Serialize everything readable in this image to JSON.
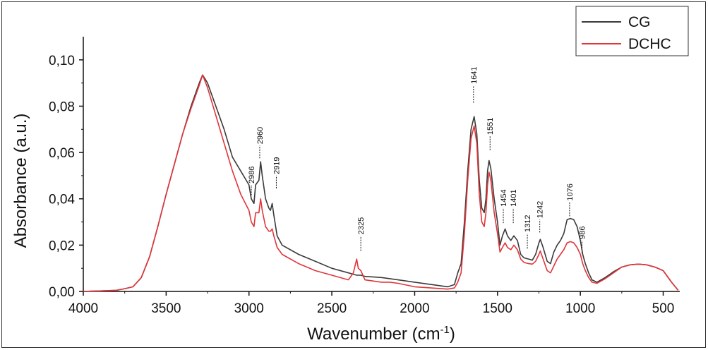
{
  "chart_data": {
    "type": "line",
    "xlabel": "Wavenumber (cm",
    "xlabel_sup": "-1",
    "xlabel_end": ")",
    "ylabel": "Absorbance (a.u.)",
    "xlim": [
      4000,
      400
    ],
    "ylim": [
      0.0,
      0.11
    ],
    "x_ticks": [
      4000,
      3500,
      3000,
      2500,
      2000,
      1500,
      1000,
      500
    ],
    "x_tick_labels": [
      "4000",
      "3500",
      "3000",
      "2500",
      "2000",
      "1500",
      "1000",
      "500"
    ],
    "y_ticks": [
      0.0,
      0.02,
      0.04,
      0.06,
      0.08,
      0.1
    ],
    "y_tick_labels": [
      "0,00",
      "0,02",
      "0,04",
      "0,06",
      "0,08",
      "0,10"
    ],
    "legend_position": "top-right",
    "grid": false,
    "series": [
      {
        "name": "CG",
        "color": "#3a3a3a",
        "points": [
          [
            4000,
            0.0
          ],
          [
            3900,
            0.0002
          ],
          [
            3800,
            0.0005
          ],
          [
            3750,
            0.0012
          ],
          [
            3700,
            0.002
          ],
          [
            3650,
            0.006
          ],
          [
            3600,
            0.015
          ],
          [
            3550,
            0.028
          ],
          [
            3500,
            0.042
          ],
          [
            3450,
            0.055
          ],
          [
            3400,
            0.068
          ],
          [
            3350,
            0.08
          ],
          [
            3300,
            0.09
          ],
          [
            3280,
            0.0935
          ],
          [
            3250,
            0.09
          ],
          [
            3200,
            0.08
          ],
          [
            3150,
            0.07
          ],
          [
            3100,
            0.058
          ],
          [
            3050,
            0.052
          ],
          [
            3000,
            0.046
          ],
          [
            2986,
            0.04
          ],
          [
            2970,
            0.038
          ],
          [
            2960,
            0.046
          ],
          [
            2940,
            0.048
          ],
          [
            2930,
            0.056
          ],
          [
            2920,
            0.05
          ],
          [
            2900,
            0.04
          ],
          [
            2880,
            0.036
          ],
          [
            2870,
            0.035
          ],
          [
            2860,
            0.038
          ],
          [
            2850,
            0.033
          ],
          [
            2830,
            0.024
          ],
          [
            2800,
            0.02
          ],
          [
            2700,
            0.016
          ],
          [
            2600,
            0.013
          ],
          [
            2500,
            0.01
          ],
          [
            2400,
            0.008
          ],
          [
            2350,
            0.007
          ],
          [
            2325,
            0.007
          ],
          [
            2300,
            0.0065
          ],
          [
            2200,
            0.006
          ],
          [
            2150,
            0.0055
          ],
          [
            2100,
            0.005
          ],
          [
            2000,
            0.004
          ],
          [
            1900,
            0.003
          ],
          [
            1800,
            0.002
          ],
          [
            1760,
            0.003
          ],
          [
            1740,
            0.008
          ],
          [
            1720,
            0.012
          ],
          [
            1700,
            0.03
          ],
          [
            1680,
            0.052
          ],
          [
            1660,
            0.07
          ],
          [
            1641,
            0.0755
          ],
          [
            1625,
            0.068
          ],
          [
            1610,
            0.048
          ],
          [
            1595,
            0.036
          ],
          [
            1580,
            0.034
          ],
          [
            1570,
            0.04
          ],
          [
            1560,
            0.052
          ],
          [
            1551,
            0.0565
          ],
          [
            1540,
            0.053
          ],
          [
            1520,
            0.04
          ],
          [
            1500,
            0.03
          ],
          [
            1485,
            0.02
          ],
          [
            1470,
            0.024
          ],
          [
            1454,
            0.027
          ],
          [
            1440,
            0.024
          ],
          [
            1420,
            0.022
          ],
          [
            1401,
            0.024
          ],
          [
            1380,
            0.022
          ],
          [
            1360,
            0.016
          ],
          [
            1340,
            0.0145
          ],
          [
            1312,
            0.014
          ],
          [
            1290,
            0.0135
          ],
          [
            1270,
            0.016
          ],
          [
            1250,
            0.021
          ],
          [
            1242,
            0.0225
          ],
          [
            1225,
            0.019
          ],
          [
            1200,
            0.013
          ],
          [
            1180,
            0.012
          ],
          [
            1160,
            0.017
          ],
          [
            1140,
            0.02
          ],
          [
            1120,
            0.022
          ],
          [
            1100,
            0.025
          ],
          [
            1080,
            0.031
          ],
          [
            1060,
            0.0315
          ],
          [
            1040,
            0.031
          ],
          [
            1020,
            0.028
          ],
          [
            1000,
            0.022
          ],
          [
            986,
            0.016
          ],
          [
            970,
            0.012
          ],
          [
            950,
            0.008
          ],
          [
            930,
            0.005
          ],
          [
            900,
            0.004
          ],
          [
            850,
            0.006
          ],
          [
            800,
            0.0085
          ],
          [
            750,
            0.0105
          ],
          [
            700,
            0.0115
          ],
          [
            650,
            0.0118
          ],
          [
            600,
            0.0115
          ],
          [
            550,
            0.0105
          ],
          [
            500,
            0.009
          ],
          [
            450,
            0.004
          ],
          [
            410,
            0.0005
          ]
        ]
      },
      {
        "name": "DCHC",
        "color": "#e0353a",
        "points": [
          [
            4000,
            0.0
          ],
          [
            3900,
            0.0002
          ],
          [
            3800,
            0.0005
          ],
          [
            3750,
            0.0012
          ],
          [
            3700,
            0.002
          ],
          [
            3650,
            0.006
          ],
          [
            3600,
            0.015
          ],
          [
            3550,
            0.028
          ],
          [
            3500,
            0.042
          ],
          [
            3450,
            0.055
          ],
          [
            3400,
            0.068
          ],
          [
            3350,
            0.079
          ],
          [
            3300,
            0.089
          ],
          [
            3280,
            0.0935
          ],
          [
            3250,
            0.088
          ],
          [
            3200,
            0.076
          ],
          [
            3150,
            0.064
          ],
          [
            3100,
            0.052
          ],
          [
            3050,
            0.042
          ],
          [
            3000,
            0.035
          ],
          [
            2986,
            0.03
          ],
          [
            2970,
            0.028
          ],
          [
            2960,
            0.034
          ],
          [
            2940,
            0.034
          ],
          [
            2930,
            0.04
          ],
          [
            2920,
            0.035
          ],
          [
            2900,
            0.028
          ],
          [
            2880,
            0.026
          ],
          [
            2870,
            0.026
          ],
          [
            2860,
            0.027
          ],
          [
            2850,
            0.024
          ],
          [
            2830,
            0.019
          ],
          [
            2800,
            0.016
          ],
          [
            2700,
            0.012
          ],
          [
            2600,
            0.009
          ],
          [
            2500,
            0.007
          ],
          [
            2400,
            0.005
          ],
          [
            2370,
            0.008
          ],
          [
            2350,
            0.014
          ],
          [
            2340,
            0.01
          ],
          [
            2325,
            0.009
          ],
          [
            2300,
            0.005
          ],
          [
            2200,
            0.004
          ],
          [
            2150,
            0.004
          ],
          [
            2100,
            0.0035
          ],
          [
            2000,
            0.002
          ],
          [
            1900,
            0.0015
          ],
          [
            1800,
            0.001
          ],
          [
            1760,
            0.0015
          ],
          [
            1740,
            0.004
          ],
          [
            1720,
            0.008
          ],
          [
            1700,
            0.025
          ],
          [
            1680,
            0.048
          ],
          [
            1660,
            0.066
          ],
          [
            1641,
            0.0715
          ],
          [
            1625,
            0.064
          ],
          [
            1610,
            0.042
          ],
          [
            1595,
            0.03
          ],
          [
            1580,
            0.028
          ],
          [
            1570,
            0.034
          ],
          [
            1560,
            0.046
          ],
          [
            1551,
            0.0515
          ],
          [
            1540,
            0.048
          ],
          [
            1520,
            0.034
          ],
          [
            1500,
            0.025
          ],
          [
            1485,
            0.017
          ],
          [
            1470,
            0.019
          ],
          [
            1454,
            0.021
          ],
          [
            1440,
            0.019
          ],
          [
            1420,
            0.018
          ],
          [
            1401,
            0.02
          ],
          [
            1380,
            0.018
          ],
          [
            1360,
            0.014
          ],
          [
            1340,
            0.0125
          ],
          [
            1312,
            0.012
          ],
          [
            1290,
            0.0118
          ],
          [
            1270,
            0.013
          ],
          [
            1250,
            0.016
          ],
          [
            1242,
            0.0175
          ],
          [
            1225,
            0.014
          ],
          [
            1200,
            0.009
          ],
          [
            1180,
            0.008
          ],
          [
            1160,
            0.011
          ],
          [
            1140,
            0.014
          ],
          [
            1120,
            0.016
          ],
          [
            1100,
            0.018
          ],
          [
            1080,
            0.021
          ],
          [
            1060,
            0.0215
          ],
          [
            1040,
            0.021
          ],
          [
            1020,
            0.019
          ],
          [
            1000,
            0.016
          ],
          [
            986,
            0.012
          ],
          [
            970,
            0.009
          ],
          [
            950,
            0.006
          ],
          [
            930,
            0.004
          ],
          [
            900,
            0.0035
          ],
          [
            850,
            0.0055
          ],
          [
            800,
            0.008
          ],
          [
            750,
            0.0105
          ],
          [
            700,
            0.0115
          ],
          [
            650,
            0.0118
          ],
          [
            600,
            0.0115
          ],
          [
            550,
            0.0105
          ],
          [
            500,
            0.009
          ],
          [
            450,
            0.004
          ],
          [
            410,
            0.0005
          ]
        ]
      }
    ],
    "annotations": [
      {
        "label": "2986",
        "x": 2986,
        "y_start": 0.0415,
        "y_end": 0.046
      },
      {
        "label": "2960",
        "x": 2935,
        "y_start": 0.0575,
        "y_end": 0.063
      },
      {
        "label": "2919",
        "x": 2835,
        "y_start": 0.0445,
        "y_end": 0.05
      },
      {
        "label": "2325",
        "x": 2325,
        "y_start": 0.0175,
        "y_end": 0.024
      },
      {
        "label": "1641",
        "x": 1645,
        "y_start": 0.0815,
        "y_end": 0.089
      },
      {
        "label": "1551",
        "x": 1545,
        "y_start": 0.061,
        "y_end": 0.067
      },
      {
        "label": "1454",
        "x": 1465,
        "y_start": 0.0295,
        "y_end": 0.036
      },
      {
        "label": "1401",
        "x": 1405,
        "y_start": 0.0295,
        "y_end": 0.036
      },
      {
        "label": "1312",
        "x": 1320,
        "y_start": 0.0185,
        "y_end": 0.025
      },
      {
        "label": "1242",
        "x": 1245,
        "y_start": 0.0255,
        "y_end": 0.031
      },
      {
        "label": "1076",
        "x": 1065,
        "y_start": 0.0325,
        "y_end": 0.0385
      },
      {
        "label": "986",
        "x": 990,
        "y_start": 0.0165,
        "y_end": 0.022
      }
    ]
  }
}
